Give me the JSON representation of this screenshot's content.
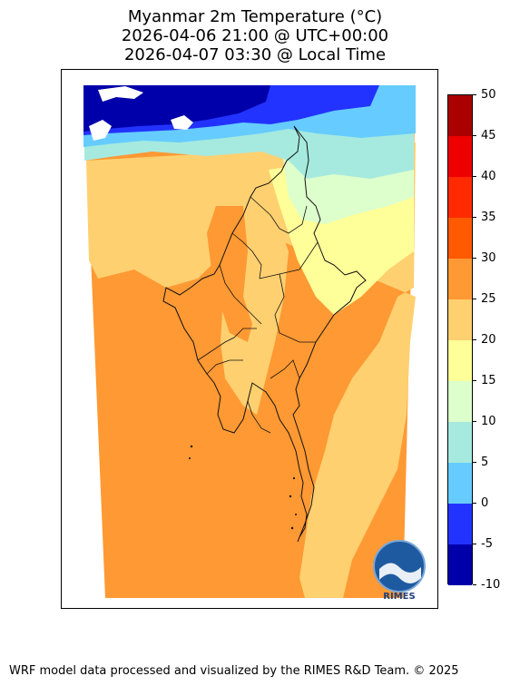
{
  "title": {
    "line1": "Myanmar 2m Temperature (°C)",
    "line2": "2026-04-06 21:00 @ UTC+00:00",
    "line3": "2026-04-07 03:30 @ Local Time"
  },
  "map": {
    "region": "Myanmar",
    "logo_text": "RIMES",
    "temperature_field_classes": [
      {
        "label": "-10 to -5",
        "color": "#0000aa"
      },
      {
        "label": "-5 to 0",
        "color": "#2233ff"
      },
      {
        "label": "0 to 5",
        "color": "#66ccff"
      },
      {
        "label": "5 to 10",
        "color": "#a6eadf"
      },
      {
        "label": "10 to 15",
        "color": "#ddffcc"
      },
      {
        "label": "15 to 20",
        "color": "#ffff99"
      },
      {
        "label": "20 to 25",
        "color": "#ffd070"
      },
      {
        "label": "25 to 30",
        "color": "#ff9933"
      },
      {
        "label": "30 to 35",
        "color": "#ff5a00"
      },
      {
        "label": "35 to 40",
        "color": "#ff2a00"
      },
      {
        "label": "40 to 45",
        "color": "#ee0000"
      },
      {
        "label": "45 to 50",
        "color": "#aa0000"
      }
    ]
  },
  "colorbar": {
    "min": -10,
    "max": 50,
    "step": 5,
    "ticks": [
      "50",
      "45",
      "40",
      "35",
      "30",
      "25",
      "20",
      "15",
      "10",
      "5",
      "0",
      "-5",
      "-10"
    ]
  },
  "footer": "WRF model data processed and visualized by the RIMES R&D Team. © 2025"
}
